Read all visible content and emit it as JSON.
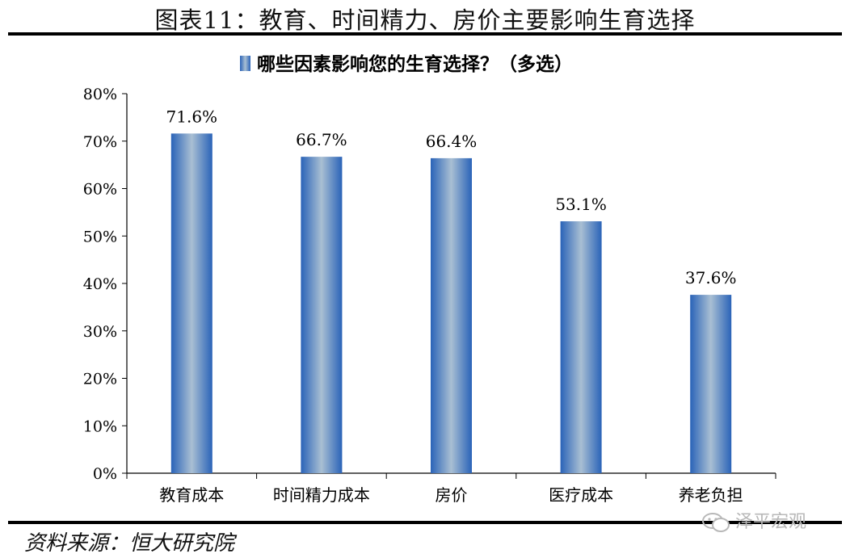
{
  "figure_title": "图表11：教育、时间精力、房价主要影响生育选择",
  "source": "资料来源：恒大研究院",
  "watermark": "泽平宏观",
  "colors": {
    "bar_edge": "#2a63b8",
    "bar_center": "#a9bfd3"
  },
  "chart_data": {
    "type": "bar",
    "categories": [
      "教育成本",
      "时间精力成本",
      "房价",
      "医疗成本",
      "养老负担"
    ],
    "series": [
      {
        "name": "哪些因素影响您的生育选择？（多选）",
        "values": [
          71.6,
          66.7,
          66.4,
          53.1,
          37.6
        ]
      }
    ],
    "data_labels": [
      "71.6%",
      "66.7%",
      "66.4%",
      "53.1%",
      "37.6%"
    ],
    "ylim": [
      0,
      80
    ],
    "yticks": [
      "0%",
      "10%",
      "20%",
      "30%",
      "40%",
      "50%",
      "60%",
      "70%",
      "80%"
    ],
    "xlabel": "",
    "ylabel": "",
    "grid": false,
    "legend_position": "top"
  }
}
